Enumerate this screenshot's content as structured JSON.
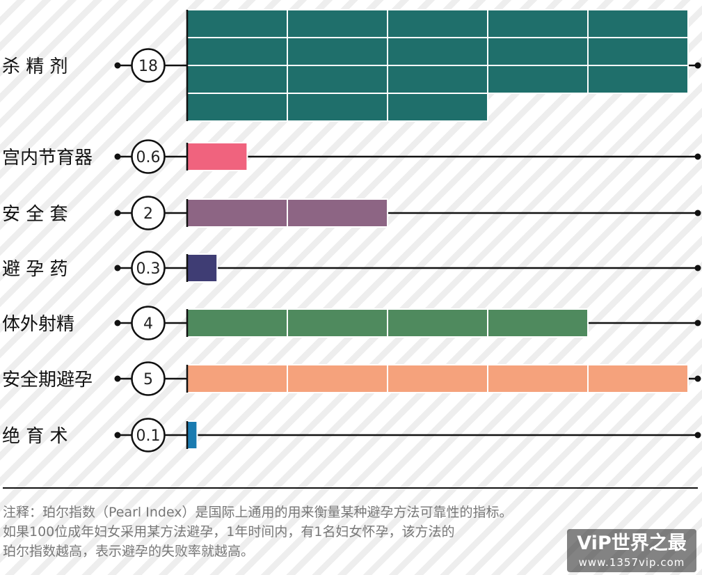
{
  "chart_data": {
    "type": "bar",
    "categories": [
      "杀 精 剂",
      "宫内节育器",
      "安 全 套",
      "避 孕 药",
      "体外射精",
      "安全期避孕",
      "绝 育 术"
    ],
    "values": [
      18,
      0.6,
      2,
      0.3,
      4,
      5,
      0.1
    ],
    "value_labels": [
      "18",
      "0.6",
      "2",
      "0.3",
      "4",
      "5",
      "0.1"
    ],
    "xlim": [
      0,
      5
    ],
    "colors": [
      "#1f6f6b",
      "#f0637e",
      "#8d6584",
      "#3f3d74",
      "#4f8a5e",
      "#f5a27c",
      "#1a7bb0"
    ]
  },
  "notes": [
    "注释：珀尔指数（Pearl Index）是国际上通用的用来衡量某种避孕方法可靠性的指标。",
    "如果100位成年妇女采用某方法避孕，1年时间内，有1名妇女怀孕，该方法的",
    "珀尔指数越高，表示避孕的失败率就越高。"
  ],
  "watermark": {
    "logo": "ViP世界之最",
    "url": "www.1357vip.com"
  }
}
